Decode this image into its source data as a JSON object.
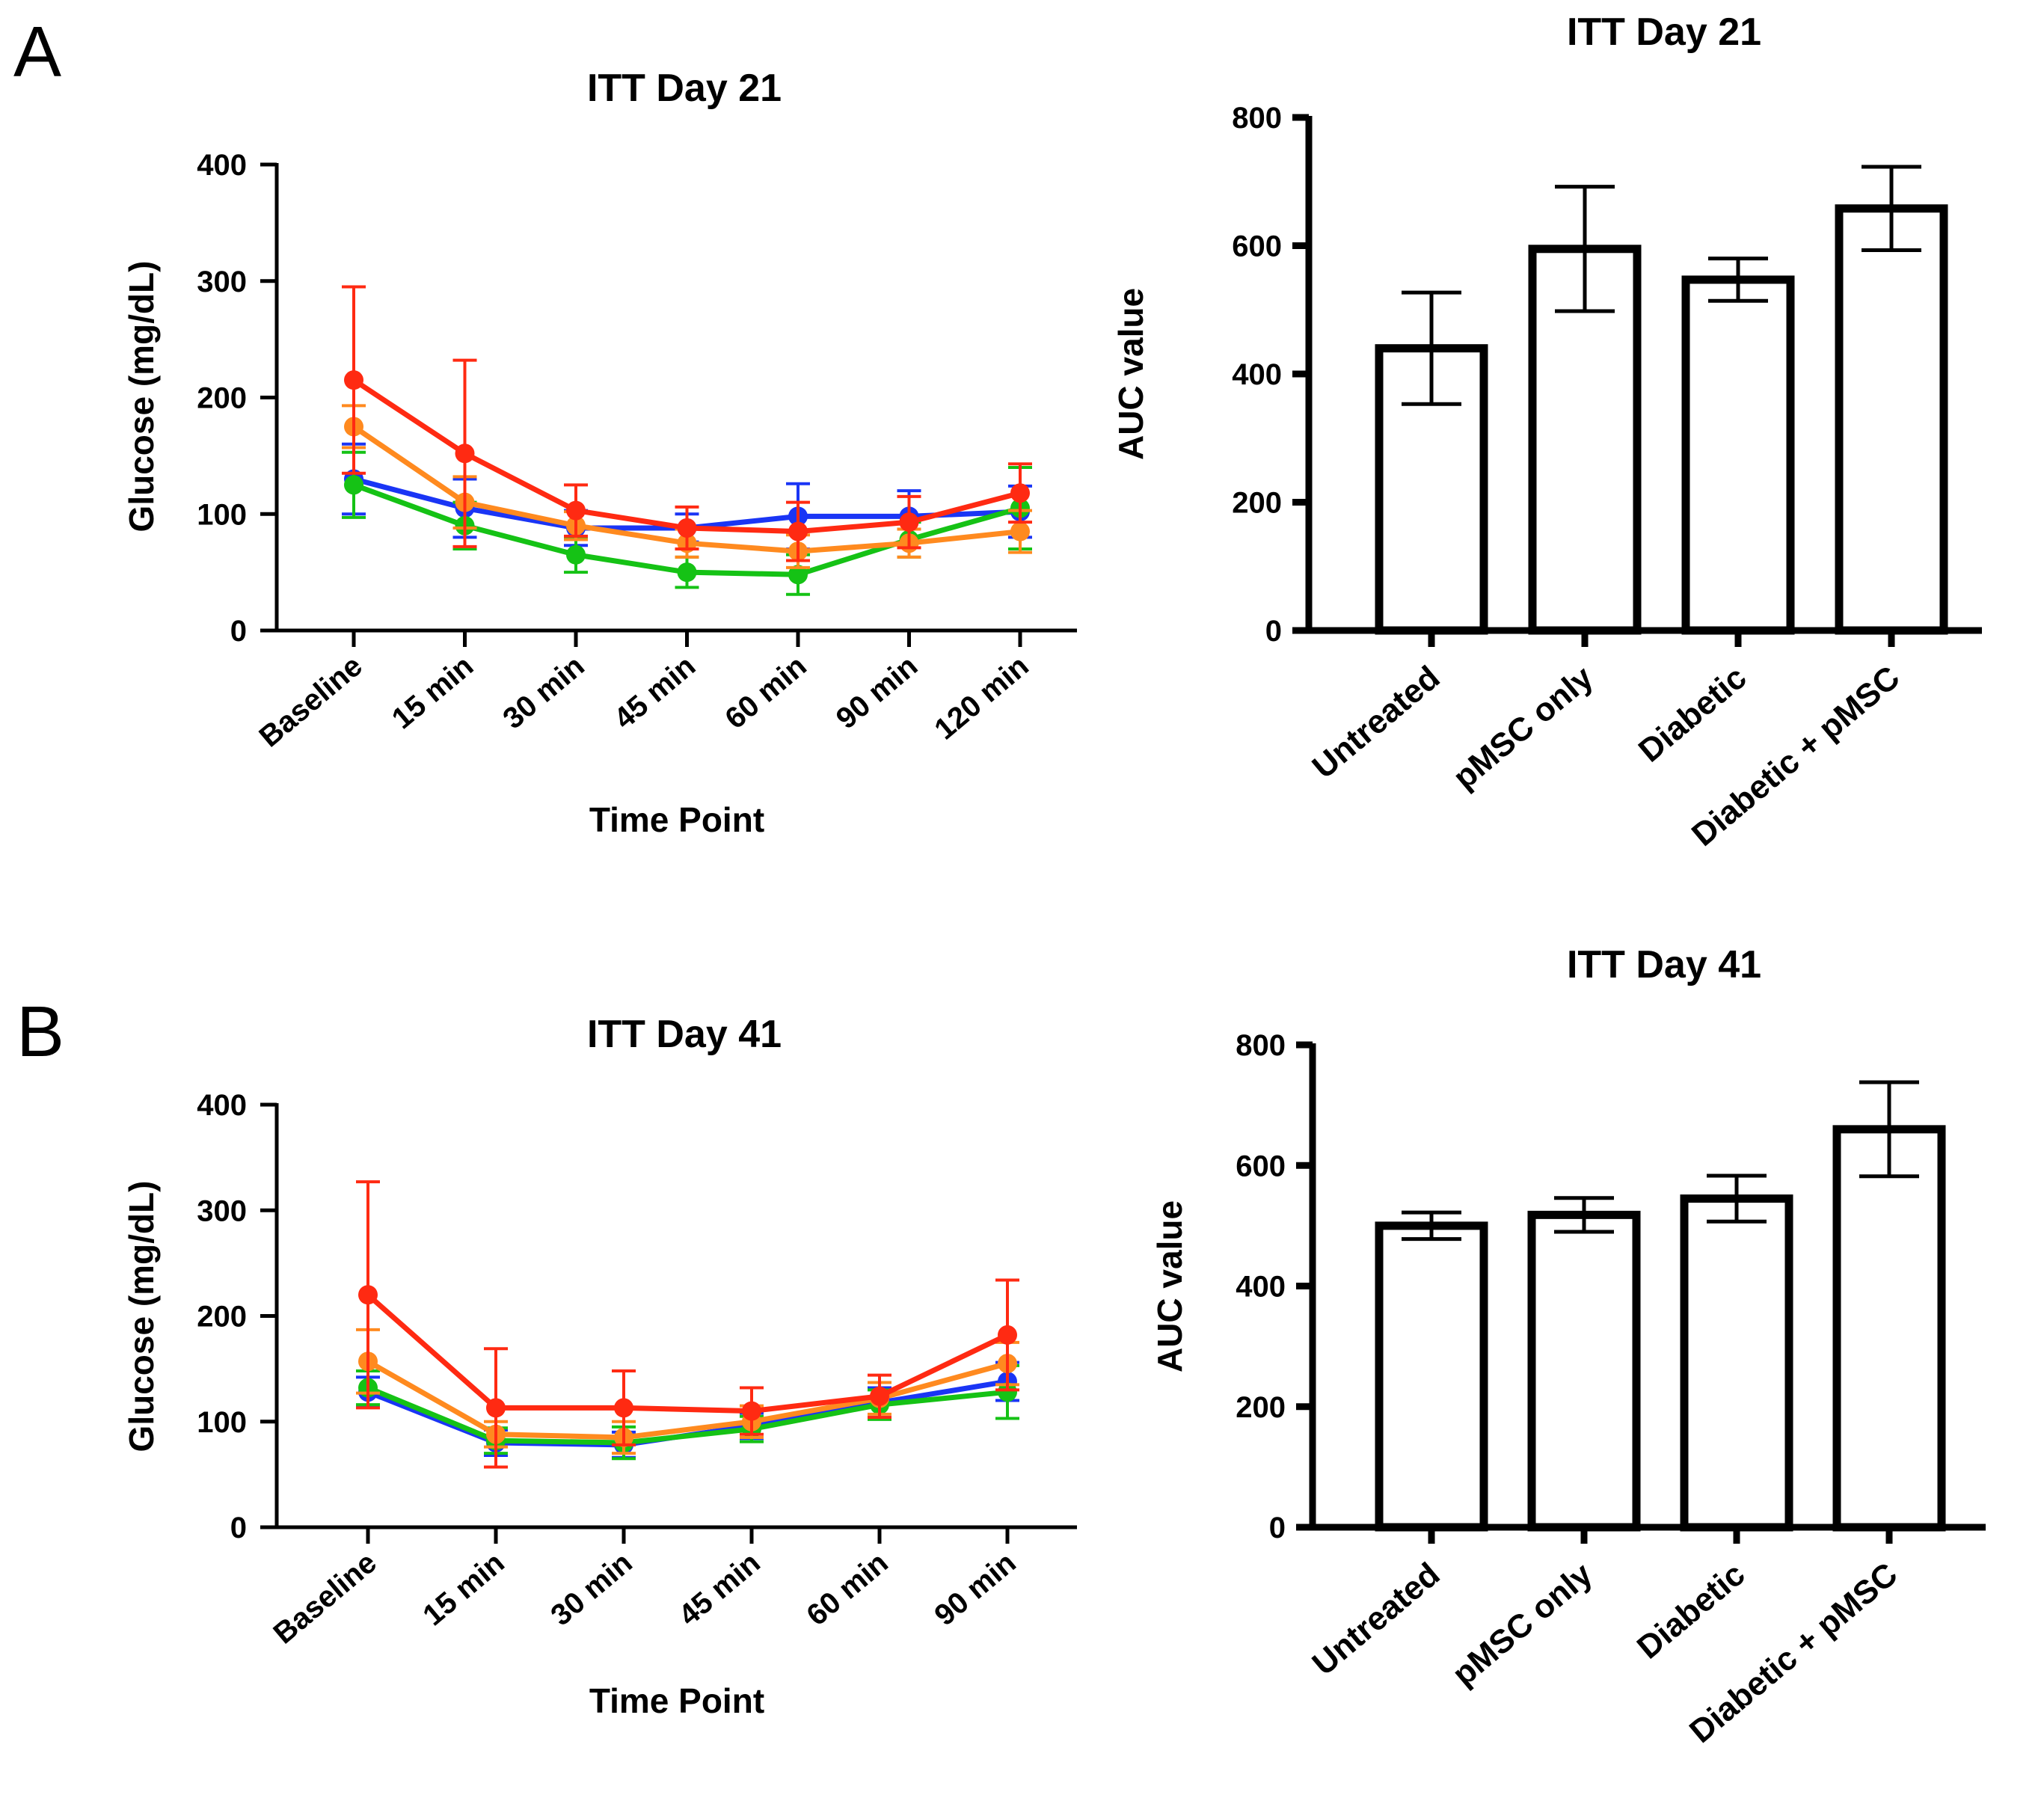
{
  "figure": {
    "panel_a_label": "A",
    "panel_b_label": "B"
  },
  "colors": {
    "series": [
      "#1a35f5",
      "#15c215",
      "#ff8a1f",
      "#ff2a12"
    ],
    "bar_stroke": "#000000",
    "bar_fill": "#ffffff"
  },
  "chart_data": [
    {
      "id": "A-line",
      "type": "line",
      "title": "ITT Day 21",
      "xlabel": "Time Point",
      "ylabel": "Glucose (mg/dL)",
      "ylim": [
        0,
        400
      ],
      "yticks": [
        "0",
        "100",
        "200",
        "300",
        "400"
      ],
      "categories": [
        "Baseline",
        "15 min",
        "30 min",
        "45 min",
        "60 min",
        "90 min",
        "120 min"
      ],
      "series": [
        {
          "values": [
            130,
            105,
            88,
            88,
            98,
            98,
            102
          ],
          "errors": [
            30,
            25,
            15,
            12,
            28,
            22,
            22
          ]
        },
        {
          "values": [
            125,
            90,
            65,
            50,
            48,
            78,
            105
          ],
          "errors": [
            28,
            20,
            15,
            13,
            17,
            15,
            35
          ]
        },
        {
          "values": [
            175,
            110,
            90,
            75,
            68,
            75,
            85
          ],
          "errors": [
            18,
            22,
            12,
            12,
            14,
            12,
            18
          ]
        },
        {
          "values": [
            215,
            152,
            103,
            88,
            85,
            93,
            118
          ],
          "errors": [
            80,
            80,
            22,
            18,
            25,
            22,
            25
          ]
        }
      ]
    },
    {
      "id": "A-bar",
      "type": "bar",
      "title": "ITT Day 21",
      "xlabel": "",
      "ylabel": "AUC value",
      "ylim": [
        0,
        800
      ],
      "yticks": [
        "0",
        "200",
        "400",
        "600",
        "800"
      ],
      "categories": [
        "Untreated",
        "pMSC only",
        "Diabetic",
        "Diabetic + pMSC"
      ],
      "values": [
        440,
        595,
        547,
        658
      ],
      "errors": [
        87,
        97,
        33,
        65
      ]
    },
    {
      "id": "B-line",
      "type": "line",
      "title": "ITT Day 41",
      "xlabel": "Time Point",
      "ylabel": "Glucose (mg/dL)",
      "ylim": [
        0,
        400
      ],
      "yticks": [
        "0",
        "100",
        "200",
        "300",
        "400"
      ],
      "categories": [
        "Baseline",
        "15 min",
        "30 min",
        "45 min",
        "60 min",
        "90 min"
      ],
      "series": [
        {
          "values": [
            128,
            80,
            78,
            96,
            118,
            138
          ],
          "errors": [
            14,
            12,
            12,
            12,
            14,
            18
          ]
        },
        {
          "values": [
            132,
            82,
            80,
            93,
            116,
            128
          ],
          "errors": [
            16,
            12,
            15,
            12,
            14,
            25
          ]
        },
        {
          "values": [
            157,
            88,
            85,
            100,
            122,
            155
          ],
          "errors": [
            30,
            12,
            15,
            15,
            15,
            20
          ]
        },
        {
          "values": [
            220,
            113,
            113,
            110,
            124,
            182
          ],
          "errors": [
            107,
            56,
            35,
            22,
            20,
            52
          ]
        }
      ]
    },
    {
      "id": "B-bar",
      "type": "bar",
      "title": "ITT Day 41",
      "xlabel": "",
      "ylabel": "AUC value",
      "ylim": [
        0,
        800
      ],
      "yticks": [
        "0",
        "200",
        "400",
        "600",
        "800"
      ],
      "categories": [
        "Untreated",
        "pMSC only",
        "Diabetic",
        "Diabetic + pMSC"
      ],
      "values": [
        500,
        518,
        545,
        660
      ],
      "errors": [
        22,
        28,
        38,
        78
      ]
    }
  ]
}
